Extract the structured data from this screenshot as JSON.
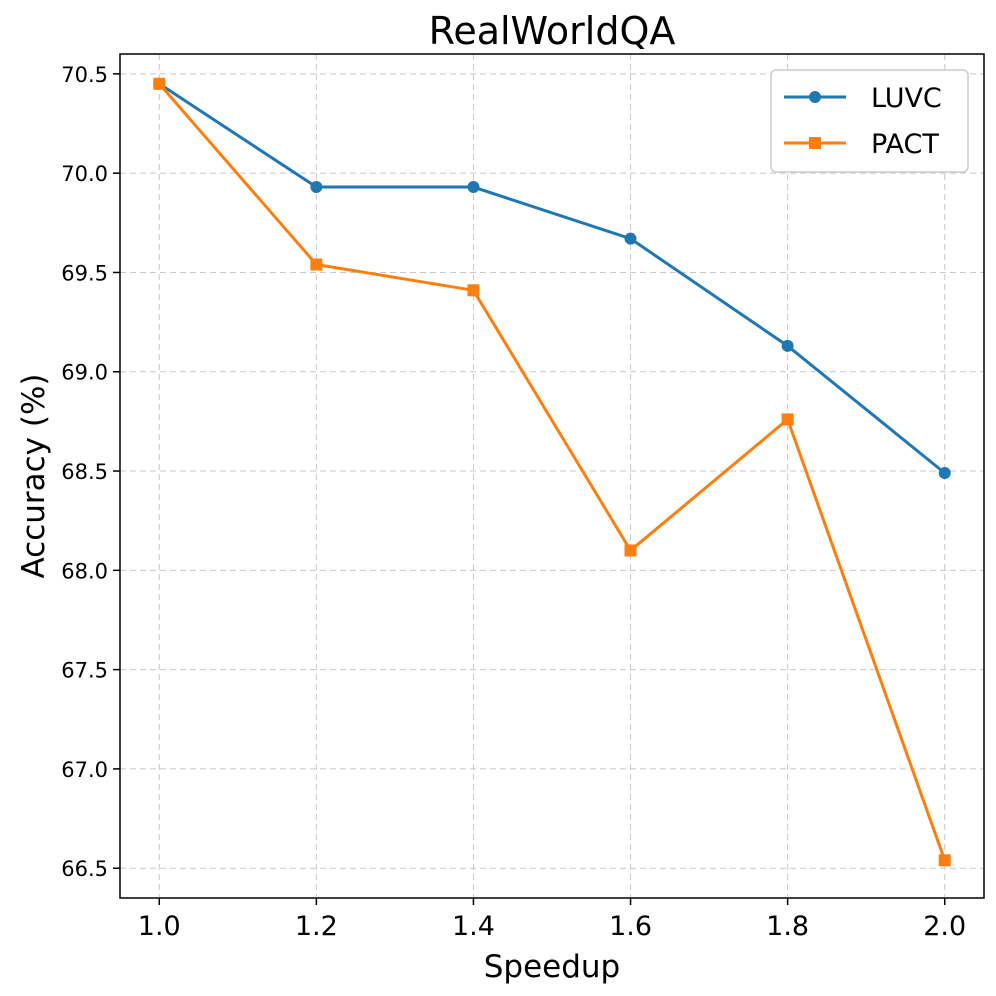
{
  "chart_data": {
    "type": "line",
    "title": "RealWorldQA",
    "xlabel": "Speedup",
    "ylabel": "Accuracy (%)",
    "x": [
      1.0,
      1.2,
      1.4,
      1.6,
      1.8,
      2.0
    ],
    "xticks": [
      "1.0",
      "1.2",
      "1.4",
      "1.6",
      "1.8",
      "2.0"
    ],
    "yticks": [
      "66.5",
      "67.0",
      "67.5",
      "68.0",
      "68.5",
      "69.0",
      "69.5",
      "70.0",
      "70.5"
    ],
    "xlim": [
      0.95,
      2.05
    ],
    "ylim": [
      66.35,
      70.6
    ],
    "grid": true,
    "legend": "top-right",
    "series": [
      {
        "name": "LUVC",
        "color": "#1f77b4",
        "marker": "circle",
        "values": [
          70.45,
          69.93,
          69.93,
          69.67,
          69.13,
          68.49
        ]
      },
      {
        "name": "PACT",
        "color": "#ff7f0e",
        "marker": "square",
        "values": [
          70.45,
          69.54,
          69.41,
          68.1,
          68.76,
          66.54
        ]
      }
    ]
  }
}
